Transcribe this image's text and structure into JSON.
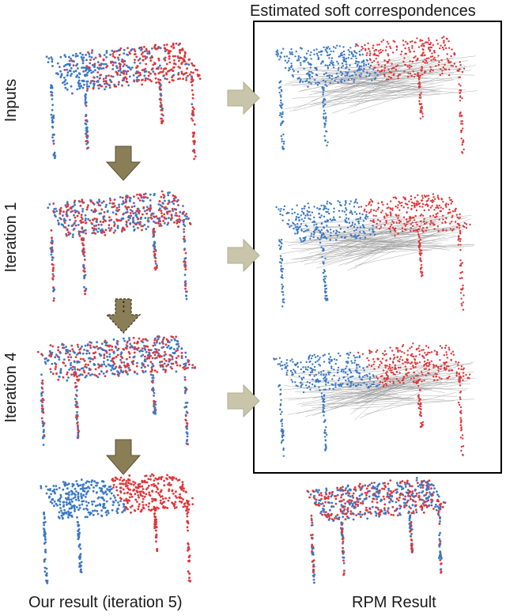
{
  "figure": {
    "corr_title": "Estimated soft correspondences",
    "row_labels": [
      "Inputs",
      "Iteration 1",
      "Iteration 4"
    ],
    "our_result_label": "Our result (iteration 5)",
    "rpm_result_label": "RPM Result",
    "ellipsis": "⋮"
  },
  "colors": {
    "blue": "#3b78c4",
    "red": "#e0363a",
    "down_arrow": "#8a7e57",
    "right_arrow": "#c8c5aa",
    "box_border": "#000000",
    "corr_line": "#9a9a9a"
  },
  "icons": {
    "down_arrow": "down-arrow-icon",
    "right_arrow": "right-arrow-icon"
  }
}
